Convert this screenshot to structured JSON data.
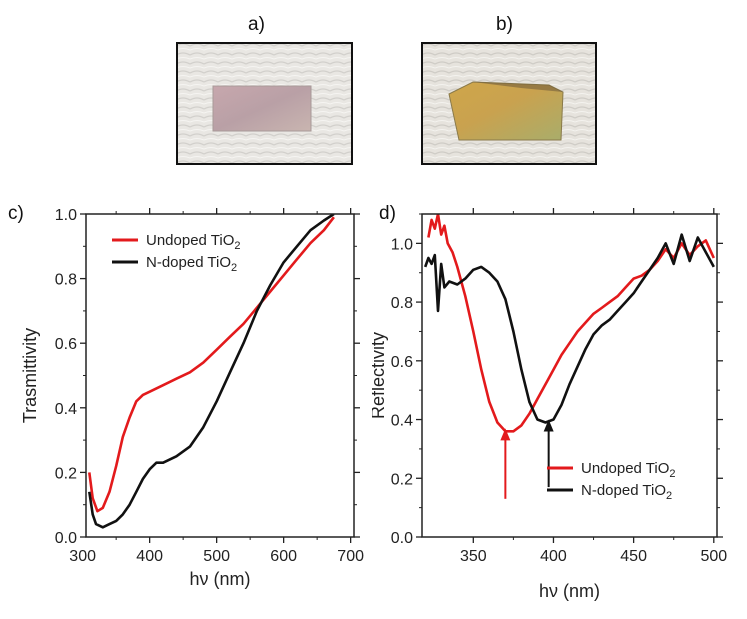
{
  "panels": {
    "a": "a)",
    "b": "b)",
    "c": "c)",
    "d": "d)"
  },
  "colors": {
    "undoped": "#e31a1c",
    "ndoped": "#111111",
    "frame": "#222222"
  },
  "chart_data": [
    {
      "id": "c",
      "type": "line",
      "title": "",
      "xlabel": "hν (nm)",
      "ylabel": "Trasmittivity",
      "xlim": [
        305,
        705
      ],
      "ylim": [
        0,
        1.0
      ],
      "xticks": [
        300,
        400,
        500,
        600,
        700
      ],
      "xtick_labels": [
        "300",
        "400",
        "500",
        "600",
        "700"
      ],
      "yticks": [
        0,
        0.2,
        0.4,
        0.6,
        0.8,
        1.0
      ],
      "ytick_labels": [
        "0.0",
        "0.2",
        "0.4",
        "0.6",
        "0.8",
        "1.0"
      ],
      "legend": {
        "position": "top-left",
        "entries": [
          "Undoped TiO",
          "N-doped TiO"
        ],
        "subscripts": [
          "2",
          "2"
        ]
      },
      "series": [
        {
          "name": "Undoped TiO2",
          "color": "#e31a1c",
          "x": [
            310,
            315,
            322,
            330,
            340,
            350,
            360,
            370,
            380,
            390,
            400,
            420,
            440,
            460,
            480,
            500,
            520,
            540,
            560,
            580,
            600,
            620,
            640,
            660,
            675
          ],
          "y": [
            0.2,
            0.12,
            0.08,
            0.09,
            0.14,
            0.22,
            0.31,
            0.37,
            0.42,
            0.44,
            0.45,
            0.47,
            0.49,
            0.51,
            0.54,
            0.58,
            0.62,
            0.66,
            0.71,
            0.76,
            0.81,
            0.86,
            0.91,
            0.95,
            0.99
          ]
        },
        {
          "name": "N-doped TiO2",
          "color": "#111111",
          "x": [
            310,
            315,
            320,
            330,
            340,
            350,
            360,
            370,
            380,
            390,
            400,
            410,
            420,
            440,
            460,
            480,
            500,
            520,
            540,
            560,
            580,
            600,
            620,
            640,
            660,
            675
          ],
          "y": [
            0.14,
            0.07,
            0.04,
            0.03,
            0.04,
            0.05,
            0.07,
            0.1,
            0.14,
            0.18,
            0.21,
            0.23,
            0.23,
            0.25,
            0.28,
            0.34,
            0.42,
            0.51,
            0.6,
            0.7,
            0.78,
            0.85,
            0.9,
            0.95,
            0.98,
            1.0
          ]
        }
      ]
    },
    {
      "id": "d",
      "type": "line",
      "title": "",
      "xlabel": "hν (nm)",
      "ylabel": "Reflectivity",
      "xlim": [
        318,
        502
      ],
      "ylim": [
        0,
        1.1
      ],
      "xticks": [
        350,
        400,
        450,
        500
      ],
      "xtick_labels": [
        "350",
        "400",
        "450",
        "500"
      ],
      "yticks": [
        0,
        0.2,
        0.4,
        0.6,
        0.8,
        1.0
      ],
      "ytick_labels": [
        "0.0",
        "0.2",
        "0.4",
        "0.6",
        "0.8",
        "1.0"
      ],
      "legend": {
        "position": "bottom-right",
        "entries": [
          "Undoped TiO",
          "N-doped TiO"
        ],
        "subscripts": [
          "2",
          "2"
        ]
      },
      "annotations": [
        {
          "type": "arrow",
          "x": 370,
          "y_from": 0.13,
          "y_to": 0.37,
          "color": "#e31a1c"
        },
        {
          "type": "arrow",
          "x": 397,
          "y_from": 0.17,
          "y_to": 0.4,
          "color": "#111111"
        }
      ],
      "series": [
        {
          "name": "Undoped TiO2",
          "color": "#e31a1c",
          "x": [
            322,
            324,
            326,
            328,
            330,
            332,
            334,
            337,
            340,
            345,
            350,
            355,
            360,
            365,
            370,
            375,
            380,
            385,
            390,
            395,
            400,
            405,
            410,
            415,
            420,
            425,
            430,
            435,
            440,
            445,
            450,
            455,
            460,
            465,
            470,
            475,
            480,
            485,
            490,
            495,
            500
          ],
          "y": [
            1.02,
            1.08,
            1.05,
            1.1,
            1.03,
            1.06,
            1.0,
            0.97,
            0.92,
            0.82,
            0.7,
            0.57,
            0.46,
            0.39,
            0.36,
            0.36,
            0.38,
            0.42,
            0.47,
            0.52,
            0.57,
            0.62,
            0.66,
            0.7,
            0.73,
            0.76,
            0.78,
            0.8,
            0.82,
            0.85,
            0.88,
            0.89,
            0.91,
            0.94,
            0.98,
            0.95,
            1.0,
            0.96,
            0.99,
            1.01,
            0.95
          ]
        },
        {
          "name": "N-doped TiO2",
          "color": "#111111",
          "x": [
            320,
            322,
            324,
            326,
            328,
            330,
            332,
            335,
            340,
            345,
            350,
            355,
            360,
            365,
            370,
            375,
            380,
            385,
            390,
            395,
            400,
            405,
            410,
            415,
            420,
            425,
            430,
            435,
            440,
            445,
            450,
            455,
            460,
            465,
            470,
            475,
            480,
            485,
            490,
            495,
            500
          ],
          "y": [
            0.92,
            0.95,
            0.93,
            0.96,
            0.77,
            0.93,
            0.85,
            0.87,
            0.86,
            0.88,
            0.91,
            0.92,
            0.9,
            0.87,
            0.81,
            0.7,
            0.57,
            0.46,
            0.4,
            0.39,
            0.4,
            0.45,
            0.52,
            0.58,
            0.64,
            0.69,
            0.72,
            0.74,
            0.77,
            0.8,
            0.83,
            0.87,
            0.91,
            0.95,
            1.0,
            0.93,
            1.03,
            0.94,
            1.02,
            0.97,
            0.92
          ]
        }
      ]
    }
  ]
}
